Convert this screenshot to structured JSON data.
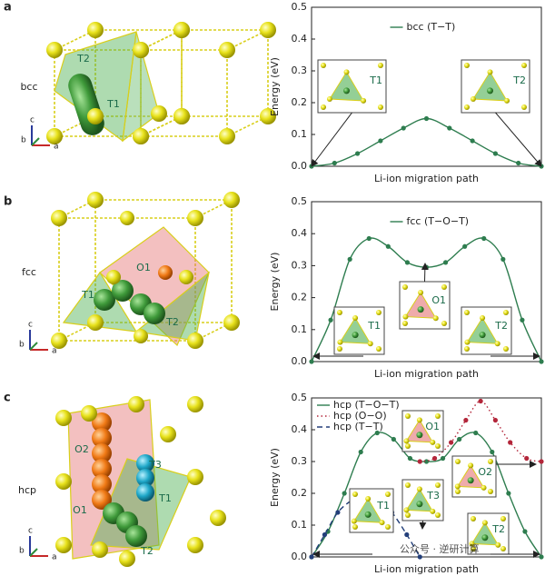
{
  "chart_data": [
    {
      "type": "line",
      "panel": "a",
      "structure": {
        "name": "bcc",
        "sites": [
          "T2",
          "T1"
        ],
        "axes": [
          "c",
          "b",
          "a"
        ]
      },
      "ylabel": "Energy (eV)",
      "xlabel": "Li-ion migration path",
      "legend": "upper center",
      "xlim": [
        0,
        10
      ],
      "ylim": [
        0,
        0.5
      ],
      "yticks": [
        {
          "value": 0,
          "label": "0.0"
        },
        0.1,
        0.2,
        0.3,
        0.4,
        0.5
      ],
      "insets": [
        "T1",
        "T2"
      ],
      "series": [
        {
          "name": "bcc (T−T)",
          "color": "#2e7d4f",
          "dash": "solid",
          "x": [
            0,
            1,
            2,
            3,
            4,
            5,
            6,
            7,
            8,
            9,
            10
          ],
          "values": [
            0,
            0.01,
            0.04,
            0.08,
            0.12,
            0.15,
            0.12,
            0.08,
            0.04,
            0.01,
            0
          ]
        }
      ]
    },
    {
      "type": "line",
      "panel": "b",
      "structure": {
        "name": "fcc",
        "sites": [
          "O1",
          "T1",
          "T2"
        ],
        "axes": [
          "c",
          "b",
          "a"
        ]
      },
      "ylabel": "Energy (eV)",
      "xlabel": "Li-ion migration path",
      "legend": "upper center",
      "xlim": [
        0,
        12
      ],
      "ylim": [
        0,
        0.5
      ],
      "yticks": [
        {
          "value": 0,
          "label": "0.0"
        },
        0.1,
        0.2,
        0.3,
        0.4,
        0.5
      ],
      "insets": [
        "T1",
        "O1",
        "T2"
      ],
      "series": [
        {
          "name": "fcc (T−O−T)",
          "color": "#2e7d4f",
          "dash": "solid",
          "x": [
            0,
            1,
            2,
            3,
            4,
            5,
            6,
            7,
            8,
            9,
            10,
            11,
            12
          ],
          "values": [
            0,
            0.13,
            0.32,
            0.385,
            0.36,
            0.31,
            0.295,
            0.31,
            0.36,
            0.385,
            0.32,
            0.13,
            0
          ]
        }
      ]
    },
    {
      "type": "line",
      "panel": "c",
      "structure": {
        "name": "hcp",
        "sites": [
          "O2",
          "T3",
          "O1",
          "T1",
          "T2"
        ],
        "axes": [
          "c",
          "b",
          "a"
        ]
      },
      "ylabel": "Energy (eV)",
      "xlabel": "Li-ion migration path",
      "legend": "upper left",
      "xlim": [
        0,
        14
      ],
      "ylim": [
        0,
        0.5
      ],
      "yticks": [
        {
          "value": 0,
          "label": "0.0"
        },
        0.1,
        0.2,
        0.3,
        0.4,
        0.5
      ],
      "insets": [
        "O1",
        "O2",
        "T3",
        "T1",
        "T2"
      ],
      "watermark": "公众号 · 逆研计算",
      "series": [
        {
          "name": "hcp (T−O−T)",
          "color": "#2e7d4f",
          "dash": "solid",
          "x": [
            0,
            1,
            2,
            3,
            4,
            5,
            6,
            7,
            8,
            9,
            10,
            11,
            12,
            13,
            14
          ],
          "values": [
            0,
            0.08,
            0.2,
            0.33,
            0.39,
            0.37,
            0.31,
            0.3,
            0.31,
            0.37,
            0.39,
            0.33,
            0.2,
            0.08,
            0
          ]
        },
        {
          "name": "hcp (O−O)",
          "color": "#b3263a",
          "dash": "dotted",
          "x": [
            6.6,
            7.5,
            8.5,
            9.4,
            10.3,
            11.2,
            12.1,
            13.1,
            14
          ],
          "values": [
            0.3,
            0.31,
            0.36,
            0.43,
            0.49,
            0.43,
            0.36,
            0.31,
            0.3
          ]
        },
        {
          "name": "hcp (T−T)",
          "color": "#233f7a",
          "dash": "dashed",
          "x": [
            0,
            0.8,
            1.6,
            2.5,
            3.3,
            4.1,
            4.9,
            5.8,
            6.6
          ],
          "values": [
            0,
            0.07,
            0.14,
            0.18,
            0.2,
            0.18,
            0.14,
            0.07,
            0
          ]
        }
      ]
    }
  ]
}
